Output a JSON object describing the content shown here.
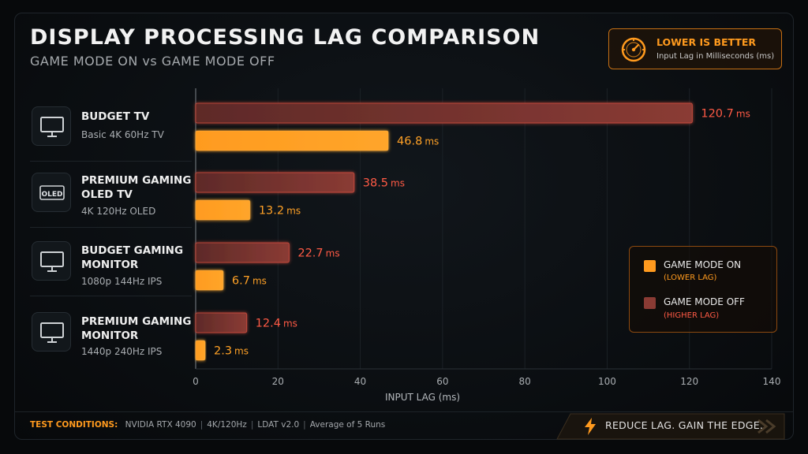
{
  "header": {
    "title": "DISPLAY PROCESSING LAG COMPARISON",
    "subtitle": "GAME MODE ON vs GAME MODE OFF"
  },
  "note": {
    "title": "LOWER IS BETTER",
    "subtitle": "Input Lag in Milliseconds (ms)",
    "icon": "gauge-icon"
  },
  "categories": [
    {
      "name_lines": [
        "BUDGET TV"
      ],
      "spec": "Basic 4K 60Hz TV",
      "icon": "monitor-icon"
    },
    {
      "name_lines": [
        "PREMIUM GAMING",
        "OLED TV"
      ],
      "spec": "4K 120Hz OLED",
      "icon": "oled-badge-icon"
    },
    {
      "name_lines": [
        "BUDGET GAMING",
        "MONITOR"
      ],
      "spec": "1080p 144Hz IPS",
      "icon": "monitor-icon"
    },
    {
      "name_lines": [
        "PREMIUM GAMING",
        "MONITOR"
      ],
      "spec": "1440p 240Hz IPS",
      "icon": "monitor-icon"
    }
  ],
  "legend": [
    {
      "label": "GAME MODE ON",
      "sub": "(LOWER LAG)",
      "color": "#ff9a1e"
    },
    {
      "label": "GAME MODE OFF",
      "sub": "(HIGHER LAG)",
      "color": "#8a3b34"
    }
  ],
  "footer": {
    "label": "TEST CONDITIONS:",
    "items": [
      "NVIDIA RTX 4090",
      "4K/120Hz",
      "LDAT v2.0",
      "Average of 5 Runs"
    ],
    "separator": "|",
    "cta": "REDUCE LAG. GAIN THE EDGE."
  },
  "chart_data": {
    "type": "bar",
    "orientation": "horizontal",
    "categories": [
      "BUDGET TV",
      "PREMIUM GAMING OLED TV",
      "BUDGET GAMING MONITOR",
      "PREMIUM GAMING MONITOR"
    ],
    "series": [
      {
        "name": "GAME MODE OFF",
        "values": [
          120.7,
          38.5,
          22.7,
          12.4
        ],
        "labels": [
          "120.7",
          "38.5",
          "22.7",
          "12.4"
        ],
        "color": "#8a3b34",
        "label_color": "#ff5a45"
      },
      {
        "name": "GAME MODE ON",
        "values": [
          46.8,
          13.2,
          6.7,
          2.3
        ],
        "labels": [
          "46.8",
          "13.2",
          "6.7",
          "2.3"
        ],
        "color": "#ff9a1e",
        "label_color": "#ffa126"
      }
    ],
    "unit": "ms",
    "xlabel": "INPUT LAG (ms)",
    "xlim": [
      0,
      140
    ],
    "xticks": [
      0,
      20,
      40,
      60,
      80,
      100,
      120,
      140
    ],
    "grid": true,
    "legend_position": "right"
  }
}
